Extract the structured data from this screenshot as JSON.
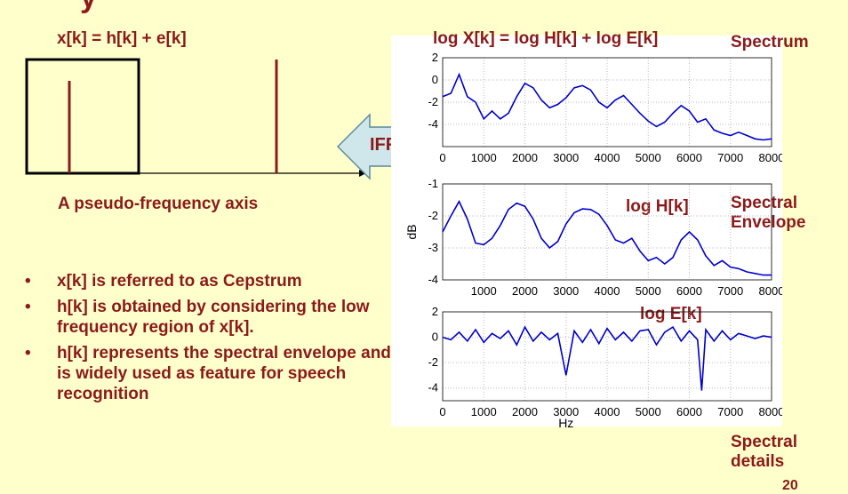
{
  "slide": {
    "title_fragment": "y",
    "left_equation": "x[k] = h[k] + e[k]",
    "right_equation": "log X[k] = log H[k] + log E[k]",
    "axis_caption": "A pseudo-frequency axis",
    "ifft_label": "IFFT",
    "bullets": [
      "x[k] is referred to as Cepstrum",
      "h[k] is obtained by considering the low frequency region of x[k].",
      "h[k] represents the spectral envelope and is widely used as feature for speech recognition"
    ],
    "side_labels": {
      "spectrum": "Spectrum",
      "spectral_envelope": "Spectral Envelope",
      "spectral_details": "Spectral details"
    },
    "plot_labels": {
      "log_h": "log H[k]",
      "log_e": "log E[k]"
    },
    "page_number": "20"
  },
  "colors": {
    "background": "#ffffcc",
    "text_red": "#8b1a1a",
    "plot_line": "#0000cc",
    "arrow_fill": "#cfe7ea"
  },
  "chart_data": [
    {
      "type": "line",
      "title": "",
      "xlabel": "",
      "ylabel": "",
      "xlim": [
        0,
        8000
      ],
      "ylim": [
        -6,
        2
      ],
      "xticks": [
        0,
        1000,
        2000,
        3000,
        4000,
        5000,
        6000,
        7000,
        8000
      ],
      "yticks": [
        2,
        0,
        -2,
        -4
      ],
      "grid": true,
      "series": [
        {
          "x": [
            0,
            200,
            400,
            600,
            800,
            1000,
            1200,
            1400,
            1600,
            1800,
            2000,
            2200,
            2400,
            2600,
            2800,
            3000,
            3200,
            3400,
            3600,
            3800,
            4000,
            4200,
            4400,
            4600,
            4800,
            5000,
            5200,
            5400,
            5600,
            5800,
            6000,
            6200,
            6400,
            6600,
            6800,
            7000,
            7200,
            7400,
            7600,
            7800,
            8000
          ],
          "values": [
            -1.5,
            -1.2,
            0.5,
            -1.5,
            -2.0,
            -3.5,
            -2.8,
            -3.5,
            -3.0,
            -1.5,
            -0.3,
            -0.7,
            -1.8,
            -2.5,
            -2.2,
            -1.6,
            -0.7,
            -0.5,
            -0.9,
            -2.0,
            -2.5,
            -1.8,
            -1.4,
            -2.2,
            -3.0,
            -3.7,
            -4.2,
            -3.8,
            -3.0,
            -2.3,
            -2.8,
            -3.8,
            -3.5,
            -4.5,
            -4.8,
            -5.0,
            -4.7,
            -5.0,
            -5.3,
            -5.4,
            -5.3
          ]
        }
      ]
    },
    {
      "type": "line",
      "title": "",
      "xlabel": "",
      "ylabel": "dB",
      "xlim": [
        0,
        8000
      ],
      "ylim": [
        -4,
        -1
      ],
      "xticks": [
        1000,
        2000,
        3000,
        4000,
        5000,
        6000,
        7000,
        8000
      ],
      "yticks": [
        -1,
        -2,
        -3,
        -4
      ],
      "grid": true,
      "series": [
        {
          "x": [
            0,
            200,
            400,
            600,
            800,
            1000,
            1200,
            1400,
            1600,
            1800,
            2000,
            2200,
            2400,
            2600,
            2800,
            3000,
            3200,
            3400,
            3600,
            3800,
            4000,
            4200,
            4400,
            4600,
            4800,
            5000,
            5200,
            5400,
            5600,
            5800,
            6000,
            6200,
            6400,
            6600,
            6800,
            7000,
            7200,
            7400,
            7600,
            7800,
            8000
          ],
          "values": [
            -2.5,
            -2.0,
            -1.55,
            -2.1,
            -2.85,
            -2.9,
            -2.7,
            -2.3,
            -1.8,
            -1.6,
            -1.7,
            -2.1,
            -2.7,
            -3.0,
            -2.8,
            -2.25,
            -1.9,
            -1.78,
            -1.8,
            -1.95,
            -2.3,
            -2.75,
            -2.85,
            -2.7,
            -3.1,
            -3.4,
            -3.3,
            -3.5,
            -3.3,
            -2.75,
            -2.5,
            -2.75,
            -3.25,
            -3.55,
            -3.4,
            -3.6,
            -3.65,
            -3.75,
            -3.8,
            -3.85,
            -3.85
          ]
        }
      ]
    },
    {
      "type": "line",
      "title": "",
      "xlabel": "Hz",
      "ylabel": "",
      "xlim": [
        0,
        8000
      ],
      "ylim": [
        -5,
        2
      ],
      "xticks": [
        0,
        1000,
        2000,
        3000,
        4000,
        5000,
        6000,
        7000,
        8000
      ],
      "yticks": [
        2,
        0,
        -2,
        -4
      ],
      "grid": true,
      "series": [
        {
          "x": [
            0,
            200,
            400,
            600,
            800,
            1000,
            1200,
            1400,
            1600,
            1800,
            2000,
            2200,
            2400,
            2600,
            2800,
            3000,
            3200,
            3400,
            3600,
            3800,
            4000,
            4200,
            4400,
            4600,
            4800,
            5000,
            5200,
            5400,
            5600,
            5800,
            6000,
            6200,
            6300,
            6400,
            6600,
            6800,
            7000,
            7200,
            7400,
            7600,
            7800,
            8000
          ],
          "values": [
            0.0,
            -0.2,
            0.4,
            -0.3,
            0.6,
            -0.4,
            0.3,
            -0.1,
            0.5,
            -0.6,
            0.8,
            -0.3,
            0.4,
            -0.2,
            0.3,
            -3.0,
            0.5,
            -0.4,
            0.6,
            -0.5,
            0.7,
            -0.2,
            0.4,
            -0.3,
            0.5,
            0.6,
            -0.6,
            0.4,
            0.8,
            -0.3,
            0.5,
            -0.2,
            -4.2,
            0.6,
            -0.3,
            0.5,
            -0.2,
            0.3,
            0.1,
            -0.1,
            0.1,
            0.0
          ]
        }
      ]
    }
  ]
}
